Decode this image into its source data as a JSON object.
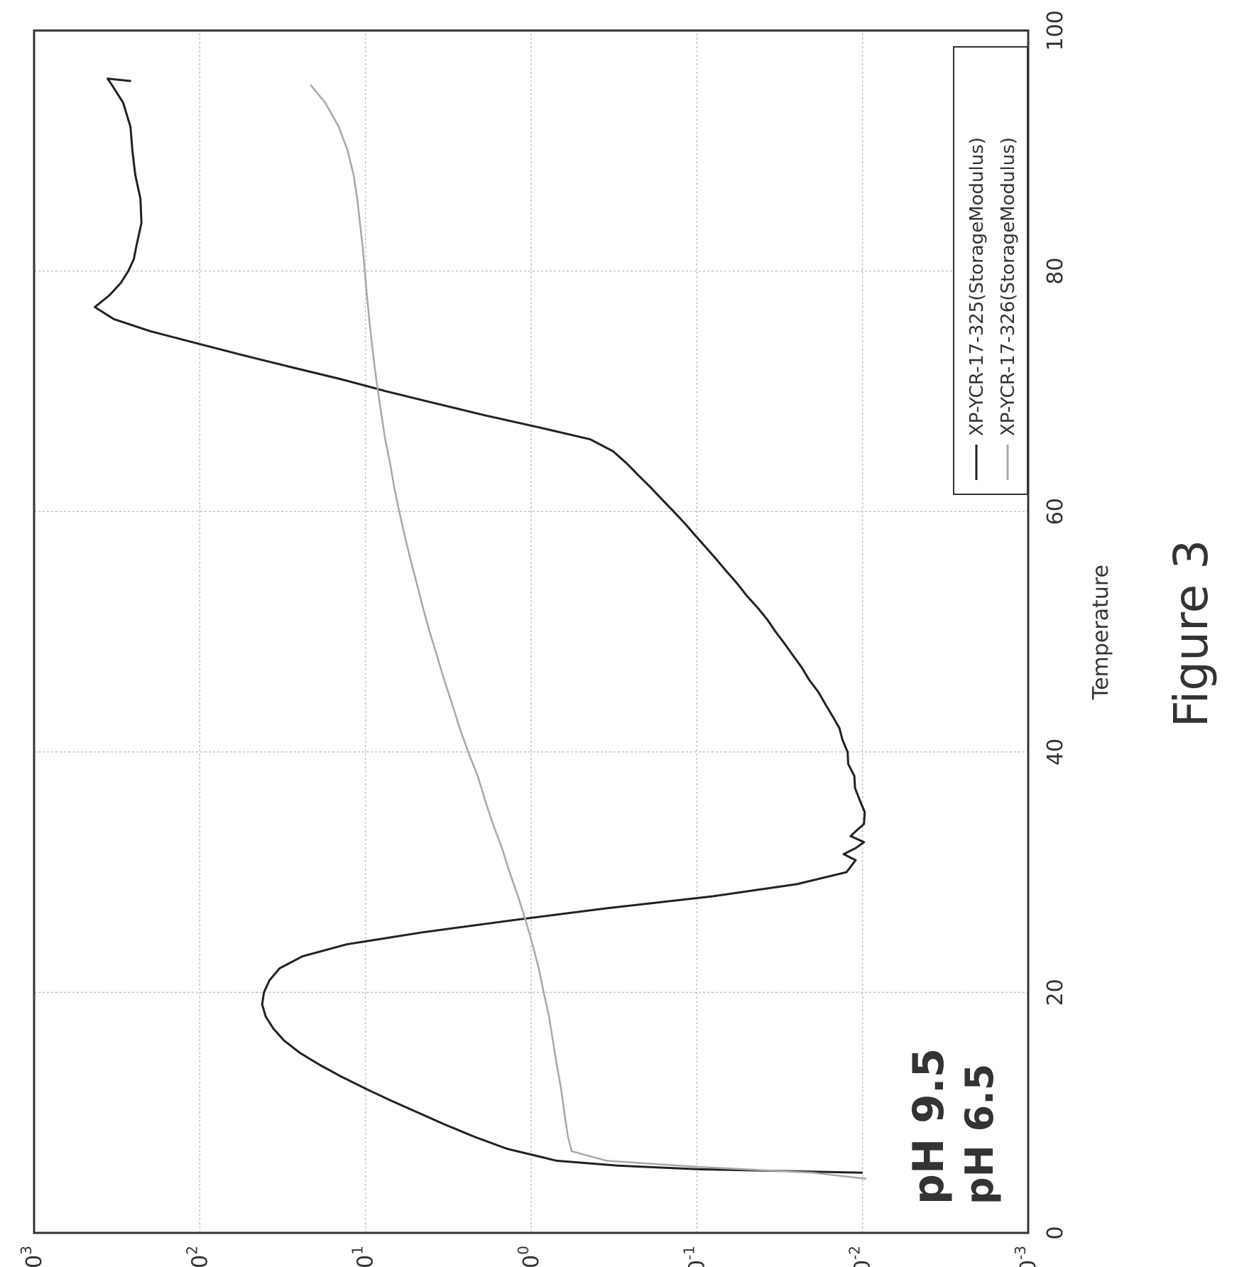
{
  "figure_caption": "Figure 3",
  "annotations": {
    "ph_a": "pH 6.5",
    "ph_b": "pH 9.5"
  },
  "chart_data": {
    "type": "line",
    "title": "",
    "xlabel": "Temperature",
    "ylabel": "",
    "xlim": [
      0,
      100
    ],
    "ylim": [
      0.001,
      1000
    ],
    "yscale": "log",
    "grid": true,
    "legend_position": "top-right",
    "x_ticks": [
      "0",
      "20",
      "40",
      "60",
      "80",
      "100"
    ],
    "y_ticks": [
      {
        "base": "10",
        "exp": "-3"
      },
      {
        "base": "10",
        "exp": "-2"
      },
      {
        "base": "10",
        "exp": "-1"
      },
      {
        "base": "10",
        "exp": "0"
      },
      {
        "base": "10",
        "exp": "1"
      },
      {
        "base": "10",
        "exp": "2"
      },
      {
        "base": "10",
        "exp": "3"
      }
    ],
    "series": [
      {
        "name": "XP-YCR-17-325(StorageModulus)",
        "color": "#222222",
        "points": [
          [
            5,
            0.01
          ],
          [
            5.3,
            0.1
          ],
          [
            5.6,
            0.3
          ],
          [
            6,
            0.7
          ],
          [
            7,
            1.4
          ],
          [
            8,
            2.2
          ],
          [
            9,
            3.3
          ],
          [
            10,
            4.8
          ],
          [
            11,
            7
          ],
          [
            12,
            10
          ],
          [
            13,
            14
          ],
          [
            14,
            19
          ],
          [
            15,
            25
          ],
          [
            16,
            31
          ],
          [
            17,
            36
          ],
          [
            18,
            40
          ],
          [
            19,
            42
          ],
          [
            20,
            41
          ],
          [
            21,
            38
          ],
          [
            22,
            33
          ],
          [
            23,
            24
          ],
          [
            24,
            13
          ],
          [
            25,
            4.5
          ],
          [
            26,
            1.3
          ],
          [
            27,
            0.35
          ],
          [
            28,
            0.08
          ],
          [
            29,
            0.025
          ],
          [
            30,
            0.0125
          ],
          [
            31,
            0.011
          ],
          [
            31.5,
            0.013
          ],
          [
            32,
            0.011
          ],
          [
            32.5,
            0.0098
          ],
          [
            33,
            0.0118
          ],
          [
            33.5,
            0.0108
          ],
          [
            34,
            0.0098
          ],
          [
            35,
            0.0097
          ],
          [
            36,
            0.0104
          ],
          [
            37,
            0.0111
          ],
          [
            38,
            0.0112
          ],
          [
            39,
            0.0122
          ],
          [
            40,
            0.0123
          ],
          [
            41,
            0.0132
          ],
          [
            42,
            0.0138
          ],
          [
            43,
            0.0152
          ],
          [
            44,
            0.0168
          ],
          [
            45,
            0.0185
          ],
          [
            46,
            0.021
          ],
          [
            47,
            0.0232
          ],
          [
            48,
            0.0262
          ],
          [
            49,
            0.0295
          ],
          [
            50,
            0.0335
          ],
          [
            51,
            0.0375
          ],
          [
            52,
            0.043
          ],
          [
            53,
            0.05
          ],
          [
            54,
            0.057
          ],
          [
            55,
            0.066
          ],
          [
            56,
            0.076
          ],
          [
            57,
            0.088
          ],
          [
            58,
            0.102
          ],
          [
            59,
            0.118
          ],
          [
            60,
            0.138
          ],
          [
            61,
            0.162
          ],
          [
            62,
            0.19
          ],
          [
            63,
            0.225
          ],
          [
            64,
            0.265
          ],
          [
            65,
            0.32
          ],
          [
            66,
            0.44
          ],
          [
            67,
            0.9
          ],
          [
            68,
            1.9
          ],
          [
            69,
            3.8
          ],
          [
            70,
            7.5
          ],
          [
            71,
            14
          ],
          [
            72,
            28
          ],
          [
            73,
            55
          ],
          [
            74,
            105
          ],
          [
            75,
            200
          ],
          [
            76,
            330
          ],
          [
            77,
            430
          ],
          [
            78,
            350
          ],
          [
            79,
            300
          ],
          [
            80,
            270
          ],
          [
            81,
            250
          ],
          [
            82,
            242
          ],
          [
            84,
            225
          ],
          [
            86,
            228
          ],
          [
            88,
            245
          ],
          [
            90,
            255
          ],
          [
            92,
            262
          ],
          [
            94,
            290
          ],
          [
            95.5,
            340
          ],
          [
            96,
            360
          ],
          [
            95.8,
            260
          ]
        ]
      },
      {
        "name": "XP-YCR-17-326(StorageModulus)",
        "color": "#a8a8a8",
        "points": [
          [
            4.5,
            0.0095
          ],
          [
            5,
            0.02
          ],
          [
            5.5,
            0.1
          ],
          [
            6,
            0.35
          ],
          [
            6.8,
            0.57
          ],
          [
            8,
            0.6
          ],
          [
            10,
            0.63
          ],
          [
            12,
            0.66
          ],
          [
            14,
            0.7
          ],
          [
            16,
            0.74
          ],
          [
            18,
            0.78
          ],
          [
            20,
            0.84
          ],
          [
            22,
            0.9
          ],
          [
            24,
            0.98
          ],
          [
            26,
            1.08
          ],
          [
            28,
            1.2
          ],
          [
            30,
            1.35
          ],
          [
            32,
            1.5
          ],
          [
            34,
            1.7
          ],
          [
            36,
            1.9
          ],
          [
            38,
            2.1
          ],
          [
            40,
            2.4
          ],
          [
            42,
            2.7
          ],
          [
            44,
            3.0
          ],
          [
            46,
            3.35
          ],
          [
            48,
            3.7
          ],
          [
            50,
            4.1
          ],
          [
            52,
            4.5
          ],
          [
            54,
            4.9
          ],
          [
            56,
            5.35
          ],
          [
            58,
            5.8
          ],
          [
            60,
            6.25
          ],
          [
            62,
            6.7
          ],
          [
            64,
            7.1
          ],
          [
            66,
            7.6
          ],
          [
            68,
            8.0
          ],
          [
            70,
            8.4
          ],
          [
            72,
            8.8
          ],
          [
            74,
            9.15
          ],
          [
            76,
            9.5
          ],
          [
            78,
            9.8
          ],
          [
            80,
            10.1
          ],
          [
            82,
            10.4
          ],
          [
            84,
            10.8
          ],
          [
            86,
            11.2
          ],
          [
            88,
            11.8
          ],
          [
            90,
            12.8
          ],
          [
            92,
            14.5
          ],
          [
            94,
            17.5
          ],
          [
            95.5,
            21.5
          ]
        ]
      }
    ]
  }
}
